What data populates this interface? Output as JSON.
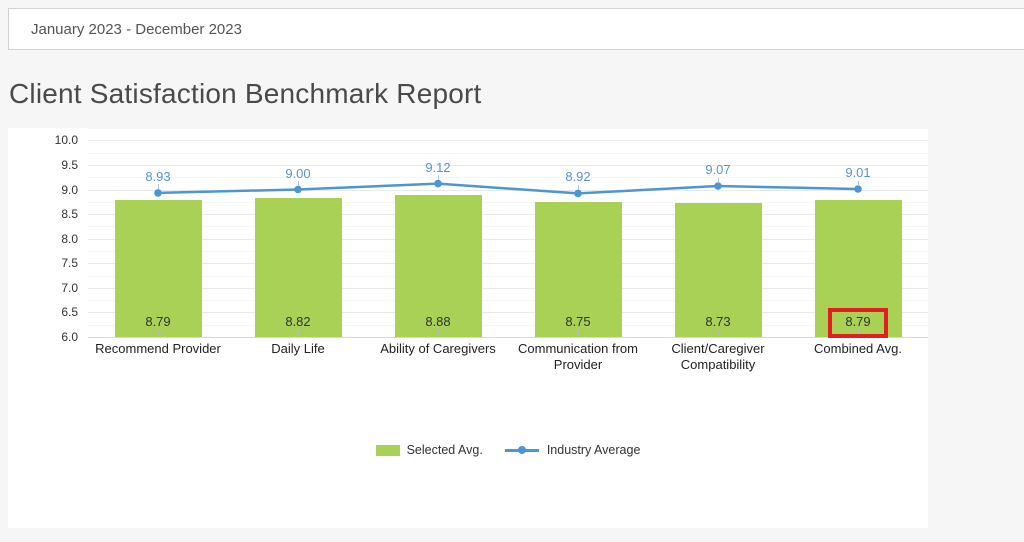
{
  "header": {
    "date_range": "January 2023 - December 2023"
  },
  "page_title": "Client Satisfaction Benchmark Report",
  "colors": {
    "bar_green": "#a9d155",
    "line_blue": "#4e96d2",
    "point_label_blue": "#5794d2",
    "highlight_red": "#e02020",
    "panel_white": "#ffffff",
    "page_background": "#f6f6f6"
  },
  "chart_data": {
    "type": "bar",
    "title": "",
    "categories": [
      "Recommend Provider",
      "Daily Life",
      "Ability of Caregivers",
      "Communication from Provider",
      "Client/Caregiver Compatibility",
      "Combined Avg."
    ],
    "series": [
      {
        "name": "Selected Avg.",
        "type": "bar",
        "color": "#a9d155",
        "values": [
          8.79,
          8.82,
          8.88,
          8.75,
          8.73,
          8.79
        ]
      },
      {
        "name": "Industry Average",
        "type": "line",
        "color": "#4e96d2",
        "values": [
          8.93,
          9.0,
          9.12,
          8.92,
          9.07,
          9.01
        ]
      }
    ],
    "xlabel": "",
    "ylabel": "",
    "ylim": [
      6.0,
      10.25
    ],
    "yticks": [
      10.0,
      9.5,
      9.0,
      8.5,
      8.0,
      7.5,
      7.0,
      6.5,
      6.0
    ],
    "grid": "horizontal minor gridlines every 0.25",
    "legend_position": "bottom-center",
    "annotation": {
      "type": "highlight-box",
      "description": "red rectangle around the Combined Avg. bar value label",
      "series": "Selected Avg.",
      "category_index": 5,
      "value": 8.79,
      "color": "#e02020"
    }
  }
}
